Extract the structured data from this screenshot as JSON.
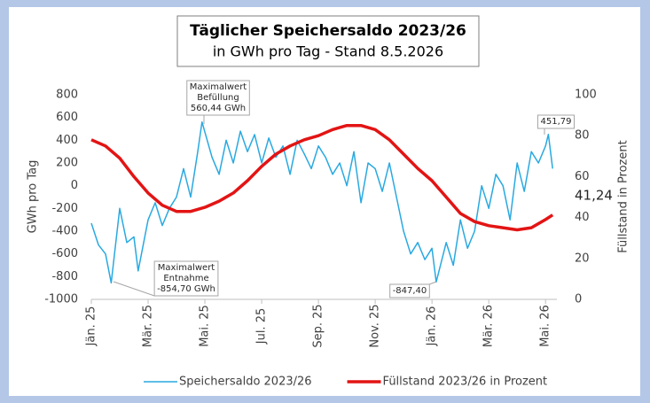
{
  "chart_data": {
    "type": "line",
    "title": "Täglicher Speichersaldo 2023/26",
    "subtitle": "in GWh pro Tag - Stand 8.5.2026",
    "ylabel": "GWh pro Tag",
    "y2label": "Füllstand in Prozent",
    "xlim": [
      0,
      16.4
    ],
    "xticks": [
      {
        "value": 0,
        "label": "Jän. 25"
      },
      {
        "value": 2,
        "label": "Mär. 25"
      },
      {
        "value": 4,
        "label": "Mai. 25"
      },
      {
        "value": 6,
        "label": "Jul. 25"
      },
      {
        "value": 8,
        "label": "Sep. 25"
      },
      {
        "value": 10,
        "label": "Nov. 25"
      },
      {
        "value": 12,
        "label": "Jän. 26"
      },
      {
        "value": 14,
        "label": "Mär. 26"
      },
      {
        "value": 16,
        "label": "Mai. 26"
      }
    ],
    "ylim": [
      -1000,
      800
    ],
    "yticks": [
      -1000,
      -800,
      -600,
      -400,
      -200,
      0,
      200,
      400,
      600,
      800
    ],
    "y2lim": [
      0,
      100
    ],
    "y2ticks": [
      0,
      20,
      40,
      60,
      80,
      100
    ],
    "series": [
      {
        "name": "Speichersaldo 2023/26",
        "color": "#29a9e1",
        "x": [
          0,
          0.25,
          0.5,
          0.7,
          1,
          1.25,
          1.5,
          1.65,
          2,
          2.25,
          2.5,
          2.75,
          3,
          3.25,
          3.5,
          3.75,
          3.9,
          4.25,
          4.5,
          4.75,
          5,
          5.25,
          5.5,
          5.75,
          6,
          6.25,
          6.5,
          6.75,
          7,
          7.25,
          7.5,
          7.75,
          8,
          8.25,
          8.5,
          8.75,
          9,
          9.25,
          9.5,
          9.75,
          10,
          10.25,
          10.5,
          10.75,
          11,
          11.25,
          11.5,
          11.75,
          12,
          12.15,
          12.5,
          12.75,
          13,
          13.25,
          13.5,
          13.75,
          14,
          14.25,
          14.5,
          14.75,
          15,
          15.25,
          15.5,
          15.75,
          16,
          16.1,
          16.25
        ],
        "values": [
          -330,
          -520,
          -600,
          -854.7,
          -200,
          -500,
          -450,
          -750,
          -300,
          -150,
          -350,
          -200,
          -100,
          150,
          -100,
          300,
          560.44,
          250,
          100,
          400,
          200,
          480,
          300,
          450,
          200,
          420,
          250,
          350,
          100,
          400,
          280,
          150,
          350,
          250,
          100,
          200,
          0,
          300,
          -150,
          200,
          150,
          -50,
          200,
          -100,
          -400,
          -600,
          -500,
          -650,
          -550,
          -847.4,
          -500,
          -700,
          -300,
          -550,
          -400,
          0,
          -200,
          100,
          0,
          -300,
          200,
          -50,
          300,
          200,
          350,
          451.79,
          150
        ]
      },
      {
        "name": "Füllstand 2023/26 in Prozent",
        "color": "#e31414",
        "axis": "y2",
        "x": [
          0,
          0.5,
          1,
          1.5,
          2,
          2.5,
          3,
          3.5,
          4,
          4.5,
          5,
          5.5,
          6,
          6.5,
          7,
          7.5,
          8,
          8.5,
          9,
          9.5,
          10,
          10.5,
          11,
          11.5,
          12,
          12.5,
          13,
          13.5,
          14,
          14.5,
          15,
          15.5,
          16,
          16.25
        ],
        "values": [
          78,
          75,
          69,
          60,
          52,
          46,
          43,
          43,
          45,
          48,
          52,
          58,
          65,
          71,
          75,
          78,
          80,
          83,
          85,
          85,
          83,
          78,
          71,
          64,
          58,
          50,
          42,
          38,
          36,
          35,
          34,
          35,
          39,
          41.24
        ]
      }
    ],
    "annotations": [
      {
        "lines": [
          "Maximalwert",
          "Befüllung",
          "560,44 GWh"
        ]
      },
      {
        "lines": [
          "Maximalwert",
          "Entnahme",
          "-854,70 GWh"
        ]
      },
      {
        "lines": [
          "-847,40"
        ]
      },
      {
        "lines": [
          "451,79"
        ]
      },
      {
        "lines": [
          "41,24"
        ]
      }
    ]
  }
}
